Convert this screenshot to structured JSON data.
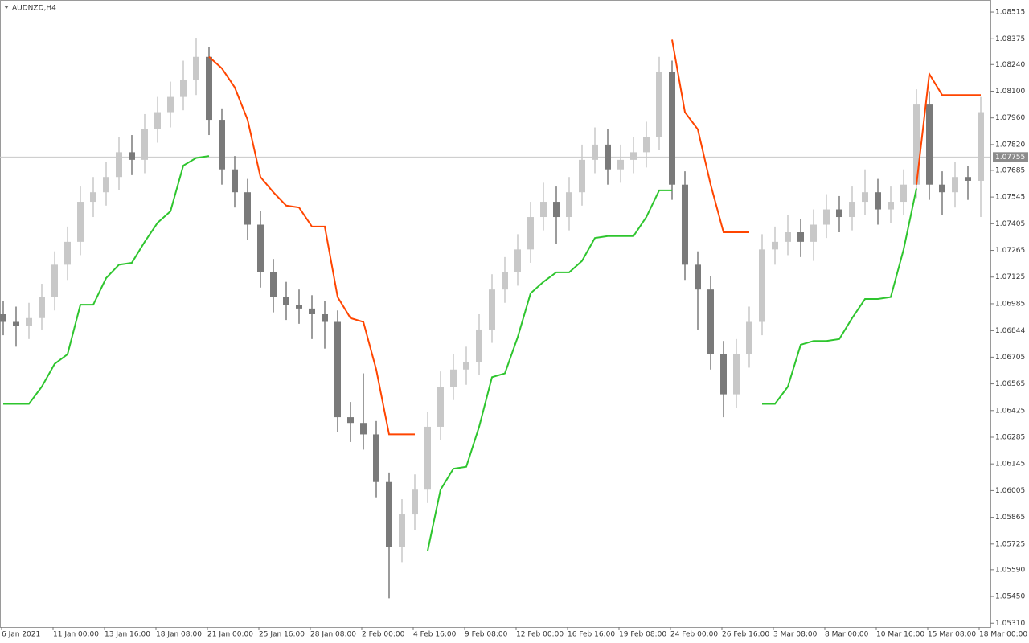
{
  "chart_data": {
    "type": "candlestick",
    "title": "AUDNZD,H4",
    "categories": [
      "6 Jan 2021",
      null,
      null,
      null,
      "11 Jan 00:00",
      null,
      null,
      null,
      "13 Jan 16:00",
      null,
      null,
      null,
      "18 Jan 08:00",
      null,
      null,
      null,
      "21 Jan 00:00",
      null,
      null,
      null,
      "25 Jan 16:00",
      null,
      null,
      null,
      "28 Jan 08:00",
      null,
      null,
      null,
      "2 Feb 00:00",
      null,
      null,
      null,
      "4 Feb 16:00",
      null,
      null,
      null,
      "9 Feb 08:00",
      null,
      null,
      null,
      "12 Feb 00:00",
      null,
      null,
      null,
      "16 Feb 16:00",
      null,
      null,
      null,
      "19 Feb 08:00",
      null,
      null,
      null,
      "24 Feb 00:00",
      null,
      null,
      null,
      "26 Feb 16:00",
      null,
      null,
      null,
      "3 Mar 08:00",
      null,
      null,
      null,
      "8 Mar 00:00",
      null,
      null,
      null,
      "10 Mar 16:00",
      null,
      null,
      null,
      "15 Mar 08:00",
      null,
      null,
      null,
      "18 Mar 00:00"
    ],
    "open": [
      1.0693,
      1.0689,
      1.0687,
      1.0691,
      1.0702,
      1.0719,
      1.0731,
      1.0752,
      1.0757,
      1.0765,
      1.0778,
      1.0774,
      1.079,
      1.0799,
      1.0807,
      1.0816,
      1.0828,
      1.0795,
      1.0769,
      1.0757,
      1.074,
      1.0715,
      1.0702,
      1.0698,
      1.0696,
      1.0693,
      1.0689,
      1.0639,
      1.0636,
      1.063,
      1.0605,
      1.0571,
      1.0588,
      1.0601,
      1.0634,
      1.0655,
      1.0664,
      1.0668,
      1.0685,
      1.0706,
      1.0715,
      1.0727,
      1.0744,
      1.0752,
      1.0744,
      1.0757,
      1.0774,
      1.0782,
      1.0769,
      1.0774,
      1.0778,
      1.0786,
      1.082,
      1.0761,
      1.0719,
      1.0706,
      1.0672,
      1.0651,
      1.0672,
      1.0689,
      1.0727,
      1.0731,
      1.0736,
      1.0731,
      1.074,
      1.0748,
      1.0744,
      1.0752,
      1.0757,
      1.0748,
      1.0752,
      1.0761,
      1.0803,
      1.0761,
      1.0757,
      1.0765,
      1.0763
    ],
    "high": [
      1.07,
      1.0697,
      1.0699,
      1.0709,
      1.0726,
      1.0739,
      1.076,
      1.0765,
      1.0773,
      1.0786,
      1.0787,
      1.0798,
      1.0807,
      1.0815,
      1.0826,
      1.0838,
      1.0833,
      1.0801,
      1.0776,
      1.0764,
      1.0747,
      1.0722,
      1.071,
      1.0706,
      1.0703,
      1.07,
      1.0695,
      1.0647,
      1.0662,
      1.0637,
      1.061,
      1.0596,
      1.0609,
      1.0642,
      1.0663,
      1.0672,
      1.0676,
      1.0693,
      1.0714,
      1.0723,
      1.0735,
      1.0752,
      1.0762,
      1.076,
      1.0765,
      1.0782,
      1.0791,
      1.079,
      1.0782,
      1.0786,
      1.0794,
      1.0828,
      1.0826,
      1.0768,
      1.0726,
      1.0713,
      1.0679,
      1.068,
      1.0697,
      1.0735,
      1.0739,
      1.0745,
      1.0743,
      1.0748,
      1.0756,
      1.0755,
      1.076,
      1.0769,
      1.0764,
      1.076,
      1.0769,
      1.0811,
      1.081,
      1.0768,
      1.0773,
      1.0771,
      1.0807
    ],
    "low": [
      1.0682,
      1.0676,
      1.068,
      1.0685,
      1.0695,
      1.0711,
      1.0724,
      1.0744,
      1.075,
      1.0758,
      1.0766,
      1.0767,
      1.0783,
      1.0791,
      1.08,
      1.0808,
      1.0787,
      1.0761,
      1.0749,
      1.0732,
      1.0707,
      1.0694,
      1.069,
      1.0688,
      1.068,
      1.0675,
      1.0631,
      1.0626,
      1.0622,
      1.0597,
      1.0544,
      1.0563,
      1.058,
      1.0594,
      1.0627,
      1.0648,
      1.0656,
      1.0661,
      1.0678,
      1.0699,
      1.0708,
      1.072,
      1.0737,
      1.073,
      1.0737,
      1.075,
      1.0767,
      1.0761,
      1.0762,
      1.0767,
      1.077,
      1.0779,
      1.0753,
      1.0711,
      1.0685,
      1.0664,
      1.0639,
      1.0644,
      1.0665,
      1.0682,
      1.0719,
      1.0724,
      1.0723,
      1.0721,
      1.0733,
      1.0736,
      1.0737,
      1.0745,
      1.074,
      1.0741,
      1.0745,
      1.0754,
      1.0753,
      1.0745,
      1.0749,
      1.0753,
      1.0744
    ],
    "close": [
      1.0689,
      1.0687,
      1.0691,
      1.0702,
      1.0719,
      1.0731,
      1.0752,
      1.0757,
      1.0765,
      1.0778,
      1.0774,
      1.079,
      1.0799,
      1.0807,
      1.0816,
      1.0828,
      1.0795,
      1.0769,
      1.0757,
      1.074,
      1.0715,
      1.0702,
      1.0698,
      1.0696,
      1.0693,
      1.0689,
      1.0639,
      1.0636,
      1.063,
      1.0605,
      1.0571,
      1.0588,
      1.0601,
      1.0634,
      1.0655,
      1.0664,
      1.0668,
      1.0685,
      1.0706,
      1.0715,
      1.0727,
      1.0744,
      1.0752,
      1.0744,
      1.0757,
      1.0774,
      1.0782,
      1.0769,
      1.0774,
      1.0778,
      1.0786,
      1.082,
      1.0761,
      1.0719,
      1.0706,
      1.0672,
      1.0651,
      1.0672,
      1.0689,
      1.0727,
      1.0731,
      1.0736,
      1.0731,
      1.074,
      1.0748,
      1.0744,
      1.0752,
      1.0757,
      1.0748,
      1.0752,
      1.0761,
      1.0803,
      1.0761,
      1.0757,
      1.0765,
      1.0763,
      1.0799
    ],
    "up_color": "#c8c8c8",
    "down_color": "#7a7a7a",
    "lines": [
      {
        "color": "#2ec52e",
        "values": [
          1.0646,
          1.0646,
          1.0646,
          1.0655,
          1.0667,
          1.0672,
          1.0698,
          1.0698,
          1.0712,
          1.0719,
          1.072,
          1.0731,
          1.0741,
          1.0747,
          1.0771,
          1.0775,
          1.0776,
          null,
          null,
          null,
          null,
          null,
          null,
          null,
          null,
          null,
          null,
          null,
          null,
          null,
          null,
          null,
          null,
          1.0569,
          1.0601,
          1.0612,
          1.0613,
          1.0634,
          1.066,
          1.0662,
          1.0681,
          1.0704,
          1.071,
          1.0715,
          1.0715,
          1.0721,
          1.0733,
          1.0734,
          1.0734,
          1.0734,
          1.0744,
          1.0758,
          1.0758,
          null,
          null,
          null,
          null,
          null,
          null,
          1.0646,
          1.0646,
          1.0655,
          1.0677,
          1.0679,
          1.0679,
          1.068,
          1.0691,
          1.0701,
          1.0701,
          1.0702,
          1.0727,
          1.0759,
          null,
          null,
          null,
          null,
          null
        ]
      },
      {
        "color": "#ff4500",
        "values": [
          null,
          null,
          null,
          null,
          null,
          null,
          null,
          null,
          null,
          null,
          null,
          null,
          null,
          null,
          null,
          null,
          1.0828,
          1.0822,
          1.0812,
          1.0795,
          1.0765,
          1.0757,
          1.075,
          1.0749,
          1.0739,
          1.0739,
          1.0702,
          1.0691,
          1.0689,
          1.0664,
          1.063,
          1.063,
          1.063,
          null,
          null,
          null,
          null,
          null,
          null,
          null,
          null,
          null,
          null,
          null,
          null,
          null,
          null,
          null,
          null,
          null,
          null,
          null,
          1.0837,
          1.0799,
          1.079,
          1.0761,
          1.0736,
          1.0736,
          1.0736,
          null,
          null,
          null,
          null,
          null,
          null,
          null,
          null,
          null,
          null,
          null,
          null,
          1.0761,
          1.0819,
          1.0808,
          1.0808,
          1.0808,
          1.0808
        ]
      }
    ],
    "current_price": 1.07755,
    "ylim": [
      1.0529,
      1.0857
    ],
    "yticks": [
      1.08515,
      1.08375,
      {
        "value": 1.0824,
        "label": "1.08240"
      },
      {
        "value": 1.081,
        "label": "1.08100"
      },
      {
        "value": 1.0796,
        "label": "1.07960"
      },
      {
        "value": 1.0782,
        "label": "1.07820"
      },
      1.07685,
      1.07545,
      1.07405,
      1.07265,
      1.07125,
      1.06985,
      1.06844,
      1.06705,
      1.06565,
      1.06425,
      1.06285,
      1.06145,
      1.06005,
      1.05865,
      1.05725,
      {
        "value": 1.0559,
        "label": "1.05590"
      },
      {
        "value": 1.0545,
        "label": "1.05450"
      },
      {
        "value": 1.0531,
        "label": "1.05310"
      }
    ],
    "grid": false
  }
}
